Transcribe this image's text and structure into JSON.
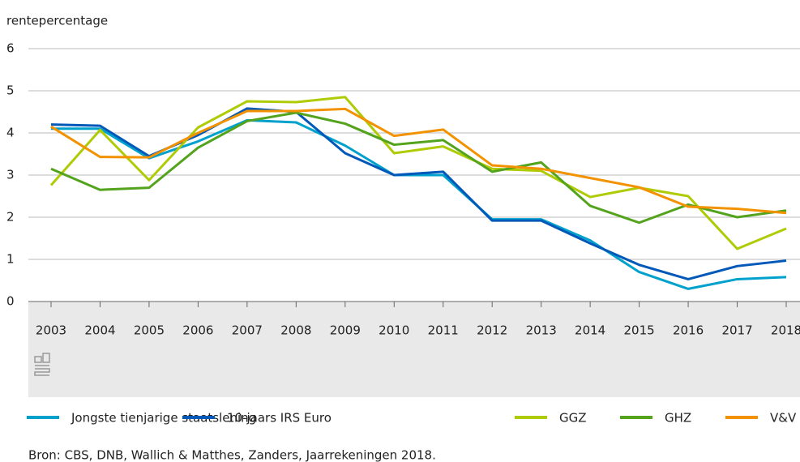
{
  "chart_data": {
    "type": "line",
    "y_label": "rentepercentage",
    "categories": [
      "2003",
      "2004",
      "2005",
      "2006",
      "2007",
      "2008",
      "2009",
      "2010",
      "2011",
      "2012",
      "2013",
      "2014",
      "2015",
      "2016",
      "2017",
      "2018"
    ],
    "ylim": [
      0,
      6
    ],
    "yticks": [
      0,
      1,
      2,
      3,
      4,
      5,
      6
    ],
    "grid": true,
    "series": [
      {
        "name": "Jongste tienjarige staatslening",
        "color": "#00a1cd",
        "values": [
          4.1,
          4.1,
          3.4,
          3.8,
          4.3,
          4.25,
          3.7,
          3.0,
          3.0,
          1.95,
          1.95,
          1.45,
          0.7,
          0.3,
          0.53,
          0.58
        ]
      },
      {
        "name": "10-jaars IRS Euro",
        "color": "#0058b8",
        "values": [
          4.2,
          4.17,
          3.45,
          3.95,
          4.58,
          4.5,
          3.52,
          3.0,
          3.08,
          1.92,
          1.92,
          1.38,
          0.87,
          0.53,
          0.84,
          0.97
        ]
      },
      {
        "name": "GGZ",
        "color": "#afcb05",
        "values": [
          2.76,
          4.07,
          2.88,
          4.13,
          4.75,
          4.73,
          4.85,
          3.52,
          3.68,
          3.15,
          3.1,
          2.48,
          2.7,
          2.5,
          1.25,
          1.73
        ]
      },
      {
        "name": "GHZ",
        "color": "#53a31d",
        "values": [
          3.15,
          2.65,
          2.7,
          3.65,
          4.28,
          4.48,
          4.22,
          3.72,
          3.83,
          3.08,
          3.3,
          2.27,
          1.87,
          2.3,
          2.0,
          2.16
        ]
      },
      {
        "name": "V&V",
        "color": "#f39200",
        "values": [
          4.15,
          3.43,
          3.42,
          4.0,
          4.52,
          4.52,
          4.57,
          3.93,
          4.08,
          3.23,
          3.15,
          2.93,
          2.71,
          2.25,
          2.2,
          2.1
        ]
      }
    ],
    "source": "Bron: CBS, DNB, Wallich & Matthes, Zanders, Jaarrekeningen 2018."
  }
}
